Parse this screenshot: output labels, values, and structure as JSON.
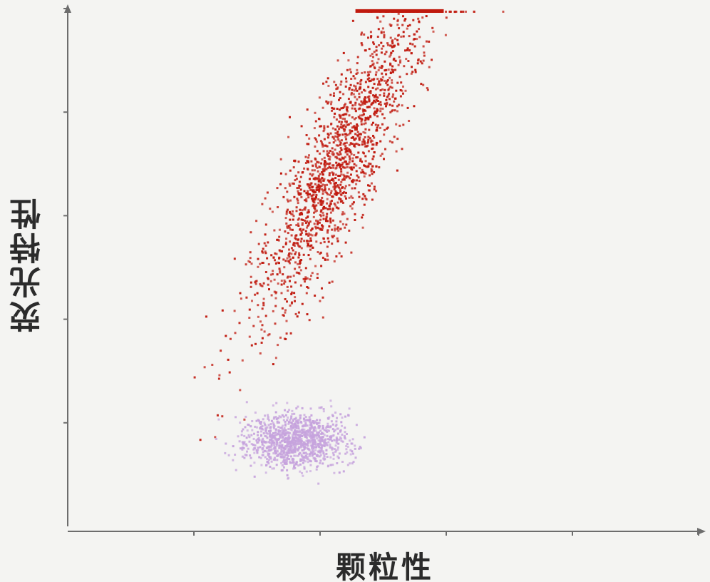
{
  "chart_data": {
    "type": "scatter",
    "xlabel": "颗粒性",
    "ylabel": "荧光特性",
    "xlim": [
      0,
      5
    ],
    "ylim": [
      0,
      5
    ],
    "grid": false,
    "axis_tick_count": {
      "x": 5,
      "y": 5
    },
    "series": [
      {
        "color": "#c0190e",
        "clusters": [
          {
            "x_center": 2.15,
            "y_center": 3.55,
            "x_spread": 0.17,
            "y_spread": 0.8,
            "x_per_y": 0.38,
            "count": 1700
          }
        ],
        "saturated_band": {
          "x_range": [
            2.28,
            2.98
          ],
          "y": 4.98
        }
      },
      {
        "color": "#c6a3dd",
        "clusters": [
          {
            "x_center": 1.8,
            "y_center": 0.84,
            "x_spread": 0.2,
            "y_spread": 0.14,
            "count": 1100
          }
        ]
      }
    ]
  }
}
